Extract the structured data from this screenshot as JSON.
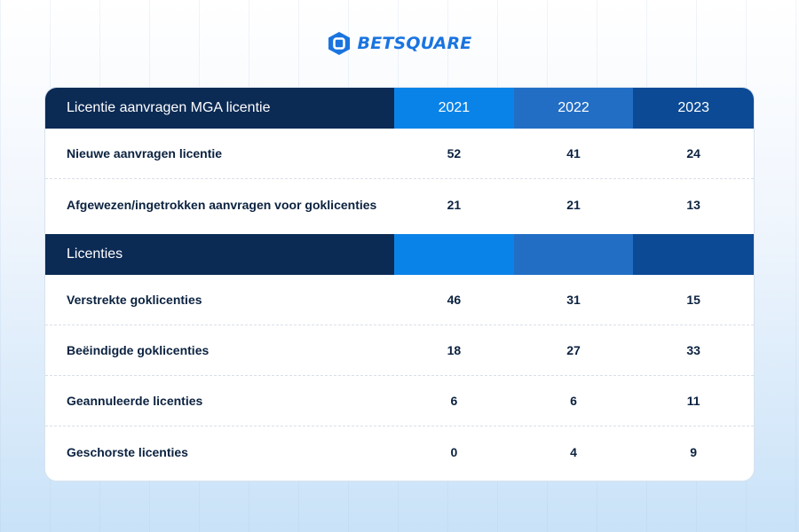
{
  "brand": {
    "name": "BETSQUARE",
    "icon": "square-logo-icon",
    "color": "#1a74e0"
  },
  "colors": {
    "header_dark": "#0b2a54",
    "year_2021": "#0a83e8",
    "year_2022": "#226ec5",
    "year_2023": "#0c4a95"
  },
  "table": {
    "years": [
      "2021",
      "2022",
      "2023"
    ],
    "sections": [
      {
        "title": "Licentie aanvragen MGA licentie",
        "rows": [
          {
            "label": "Nieuwe aanvragen licentie",
            "values": [
              "52",
              "41",
              "24"
            ]
          },
          {
            "label": "Afgewezen/ingetrokken aanvragen voor goklicenties",
            "values": [
              "21",
              "21",
              "13"
            ]
          }
        ]
      },
      {
        "title": "Licenties",
        "rows": [
          {
            "label": "Verstrekte goklicenties",
            "values": [
              "46",
              "31",
              "15"
            ]
          },
          {
            "label": "Beëindigde goklicenties",
            "values": [
              "18",
              "27",
              "33"
            ]
          },
          {
            "label": "Geannuleerde licenties",
            "values": [
              "6",
              "6",
              "11"
            ]
          },
          {
            "label": "Geschorste licenties",
            "values": [
              "0",
              "4",
              "9"
            ]
          }
        ]
      }
    ]
  }
}
